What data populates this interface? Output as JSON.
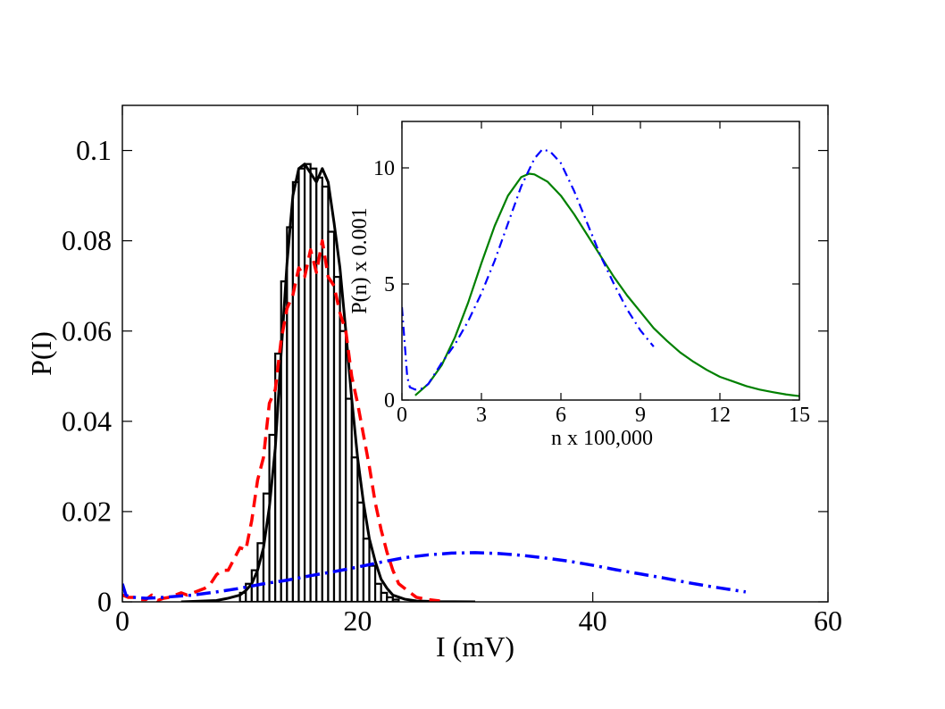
{
  "colors": {
    "background": "#ffffff",
    "axes": "#000000",
    "red_series": "#ff0000",
    "blue_series": "#0000ff",
    "green_series": "#008000",
    "black_series": "#000000"
  },
  "chart_data": [
    {
      "id": "main",
      "type": "line",
      "title": "",
      "xlabel": "I (mV)",
      "ylabel": "P(I)",
      "xlim": [
        0,
        60
      ],
      "ylim": [
        0,
        0.11
      ],
      "xticks": [
        0,
        20,
        40,
        60
      ],
      "xtick_labels": [
        "0",
        "20",
        "40",
        "60"
      ],
      "yticks": [
        0,
        0.02,
        0.04,
        0.06,
        0.08,
        0.1
      ],
      "ytick_labels": [
        "0",
        "0.02",
        "0.04",
        "0.06",
        "0.08",
        "0.1"
      ],
      "grid": false,
      "legend": "none",
      "series": [
        {
          "style": "histogram-bars",
          "color": "#000000",
          "bin_width": 0.5,
          "x": [
            10.25,
            10.75,
            11.25,
            11.75,
            12.25,
            12.75,
            13.25,
            13.75,
            14.25,
            14.75,
            15.25,
            15.75,
            16.25,
            16.75,
            17.25,
            17.75,
            18.25,
            18.75,
            19.25,
            19.75,
            20.25,
            20.75,
            21.25,
            21.75,
            22.25,
            22.75,
            23.25
          ],
          "values": [
            0.002,
            0.004,
            0.007,
            0.013,
            0.024,
            0.037,
            0.055,
            0.071,
            0.083,
            0.093,
            0.096,
            0.097,
            0.096,
            0.094,
            0.092,
            0.082,
            0.072,
            0.06,
            0.045,
            0.032,
            0.022,
            0.014,
            0.008,
            0.004,
            0.002,
            0.001,
            0.0005
          ]
        },
        {
          "style": "solid",
          "color": "#000000",
          "x": [
            5,
            8,
            9,
            10,
            10.5,
            11,
            11.5,
            12,
            12.5,
            13,
            13.5,
            14,
            14.5,
            15,
            15.5,
            16,
            16.5,
            17,
            17.5,
            18,
            18.5,
            19,
            19.5,
            20,
            20.5,
            21,
            21.5,
            22,
            22.5,
            23,
            24,
            25,
            27,
            30
          ],
          "values": [
            0,
            0.0003,
            0.0008,
            0.0015,
            0.0025,
            0.004,
            0.007,
            0.012,
            0.021,
            0.034,
            0.055,
            0.075,
            0.09,
            0.096,
            0.097,
            0.095,
            0.093,
            0.096,
            0.093,
            0.084,
            0.074,
            0.06,
            0.045,
            0.032,
            0.022,
            0.014,
            0.009,
            0.005,
            0.003,
            0.0015,
            0.0006,
            0.0002,
            5e-05,
            0
          ]
        },
        {
          "style": "dashed",
          "color": "#ff0000",
          "x": [
            0,
            0.5,
            1,
            1.5,
            2,
            2.5,
            3,
            3.5,
            4,
            4.5,
            5,
            5.5,
            6,
            7,
            7.5,
            8,
            8.5,
            9,
            9.5,
            10,
            10.5,
            11,
            11.5,
            12,
            12.5,
            13,
            13.5,
            14,
            14.5,
            15,
            15.5,
            16,
            16.5,
            17,
            17.5,
            18,
            18.5,
            19,
            19.5,
            20,
            20.5,
            21,
            21.5,
            22,
            22.5,
            23,
            23.5,
            24,
            24.5,
            25,
            26,
            27
          ],
          "values": [
            0.0015,
            0.001,
            0.001,
            0.0005,
            0.0005,
            0.0015,
            0.0003,
            0.0008,
            0.001,
            0.0015,
            0.002,
            0.0015,
            0.002,
            0.003,
            0.004,
            0.006,
            0.007,
            0.007,
            0.0095,
            0.012,
            0.0115,
            0.018,
            0.027,
            0.032,
            0.044,
            0.047,
            0.058,
            0.065,
            0.068,
            0.074,
            0.072,
            0.078,
            0.073,
            0.08,
            0.072,
            0.07,
            0.064,
            0.06,
            0.05,
            0.044,
            0.037,
            0.03,
            0.022,
            0.016,
            0.011,
            0.007,
            0.004,
            0.003,
            0.002,
            0.001,
            0.0005,
            0.0002
          ]
        },
        {
          "style": "dash-dot",
          "color": "#0000ff",
          "x": [
            0,
            0.3,
            0.7,
            1,
            2,
            3,
            4,
            5,
            6,
            8,
            10,
            12,
            14,
            16,
            18,
            20,
            22,
            24,
            26,
            28,
            30,
            32,
            34,
            36,
            38,
            40,
            42,
            44,
            46,
            48,
            50,
            52,
            53
          ],
          "values": [
            0.004,
            0.0015,
            0.001,
            0.001,
            0.0008,
            0.0009,
            0.0011,
            0.0013,
            0.0015,
            0.0022,
            0.003,
            0.004,
            0.0048,
            0.0058,
            0.0067,
            0.0077,
            0.0088,
            0.0098,
            0.0104,
            0.0108,
            0.0109,
            0.0107,
            0.0103,
            0.0097,
            0.009,
            0.0081,
            0.0071,
            0.0062,
            0.0053,
            0.0043,
            0.0034,
            0.0026,
            0.0022
          ]
        }
      ]
    },
    {
      "id": "inset",
      "type": "line",
      "title": "",
      "xlabel": "n x 100,000",
      "ylabel": "P(n) x 0.001",
      "xlim": [
        0,
        15
      ],
      "ylim": [
        0,
        12
      ],
      "xticks": [
        0,
        3,
        6,
        9,
        12,
        15
      ],
      "xtick_labels": [
        "0",
        "3",
        "6",
        "9",
        "12",
        "15"
      ],
      "yticks": [
        0,
        5,
        10
      ],
      "ytick_labels": [
        "0",
        "5",
        "10"
      ],
      "grid": false,
      "legend": "none",
      "series": [
        {
          "style": "solid",
          "color": "#008000",
          "x": [
            0.5,
            1,
            1.5,
            2,
            2.5,
            3,
            3.5,
            4,
            4.5,
            4.8,
            5,
            5.5,
            6,
            6.5,
            7,
            7.5,
            8,
            8.5,
            9,
            9.5,
            10,
            10.5,
            11,
            11.5,
            12,
            12.5,
            13,
            13.5,
            14,
            14.5,
            15
          ],
          "values": [
            0.2,
            0.7,
            1.5,
            2.7,
            4.2,
            5.9,
            7.5,
            8.8,
            9.6,
            9.75,
            9.72,
            9.4,
            8.8,
            8.0,
            7.1,
            6.2,
            5.3,
            4.5,
            3.8,
            3.1,
            2.55,
            2.05,
            1.65,
            1.3,
            1.0,
            0.8,
            0.6,
            0.45,
            0.34,
            0.24,
            0.17
          ]
        },
        {
          "style": "dash-dot",
          "color": "#0000ff",
          "x": [
            0,
            0.1,
            0.2,
            0.3,
            0.5,
            0.8,
            1,
            1.5,
            2,
            2.5,
            3,
            3.5,
            4,
            4.5,
            5,
            5.3,
            5.6,
            6,
            6.5,
            7,
            7.5,
            8,
            8.5,
            9,
            9.5
          ],
          "values": [
            4,
            2.5,
            1.0,
            0.55,
            0.45,
            0.5,
            0.7,
            1.6,
            2.4,
            3.4,
            4.6,
            6.0,
            7.6,
            9.2,
            10.4,
            10.8,
            10.7,
            10.2,
            9.0,
            7.6,
            6.2,
            5.0,
            3.9,
            3.0,
            2.3
          ]
        }
      ]
    }
  ]
}
